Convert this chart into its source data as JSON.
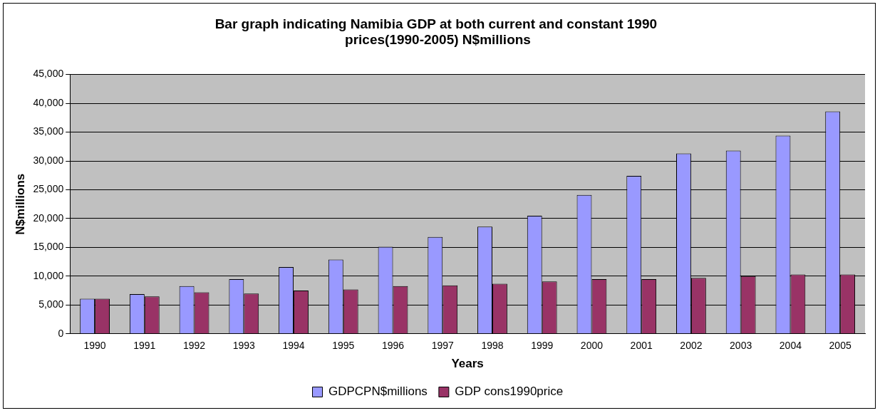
{
  "chart_data": {
    "type": "bar",
    "title": "Bar graph indicating Namibia GDP at both current and constant 1990 prices(1990-2005) N$millions",
    "xlabel": "Years",
    "ylabel": "N$millions",
    "categories": [
      "1990",
      "1991",
      "1992",
      "1993",
      "1994",
      "1995",
      "1996",
      "1997",
      "1998",
      "1999",
      "2000",
      "2001",
      "2002",
      "2003",
      "2004",
      "2005"
    ],
    "series": [
      {
        "name": "GDPCPN$millions",
        "color": "#9999ff",
        "values": [
          6100,
          6900,
          8300,
          9500,
          11600,
          12900,
          15100,
          16800,
          18600,
          20500,
          24100,
          27400,
          31300,
          31800,
          34400,
          38600
        ]
      },
      {
        "name": "GDP cons1990price",
        "color": "#993366",
        "values": [
          6100,
          6500,
          7200,
          7000,
          7500,
          7700,
          8300,
          8400,
          8700,
          9100,
          9500,
          9500,
          9700,
          10000,
          10300,
          10300
        ]
      }
    ],
    "ylim": [
      0,
      45000
    ],
    "yticks": [
      0,
      {
        "value": 5000,
        "label": "5,000"
      },
      {
        "value": 10000,
        "label": "10,000"
      },
      {
        "value": 15000,
        "label": "15,000"
      },
      {
        "value": 20000,
        "label": "20,000"
      },
      {
        "value": 25000,
        "label": "25,000"
      },
      {
        "value": 30000,
        "label": "30,000"
      },
      {
        "value": 35000,
        "label": "35,000"
      },
      {
        "value": 40000,
        "label": "40,000"
      },
      {
        "value": 45000,
        "label": "45,000"
      }
    ],
    "grid": "y",
    "legend": "bottom"
  }
}
